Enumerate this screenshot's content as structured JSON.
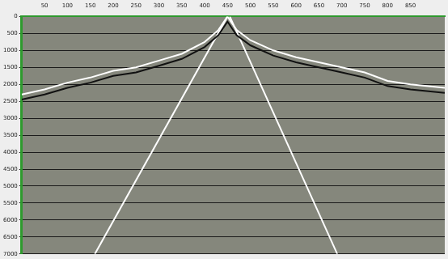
{
  "chart_data": {
    "type": "line",
    "xlim": [
      0,
      925
    ],
    "xticks": [
      50,
      100,
      150,
      200,
      250,
      300,
      350,
      400,
      450,
      500,
      550,
      600,
      650,
      700,
      750,
      800,
      850
    ],
    "ylim": [
      0,
      7000
    ],
    "yticks": [
      0,
      500,
      1000,
      1500,
      2000,
      2500,
      3000,
      3500,
      4000,
      4500,
      5000,
      5500,
      6000,
      6500,
      7000
    ],
    "grid": true,
    "tick_labels": true,
    "series": [
      {
        "color": "#ffffff",
        "x": [
          0,
          50,
          100,
          150,
          200,
          250,
          300,
          350,
          400,
          430,
          450,
          470,
          500,
          550,
          600,
          650,
          700,
          750,
          800,
          850,
          925
        ],
        "values": [
          2300,
          2150,
          1950,
          1800,
          1600,
          1500,
          1300,
          1100,
          750,
          400,
          0,
          400,
          700,
          1000,
          1200,
          1350,
          1500,
          1650,
          1900,
          2000,
          2100
        ]
      },
      {
        "color": "#111111",
        "x": [
          0,
          50,
          100,
          150,
          200,
          250,
          300,
          350,
          400,
          430,
          450,
          470,
          500,
          550,
          600,
          650,
          700,
          750,
          800,
          850,
          925
        ],
        "values": [
          2450,
          2300,
          2100,
          1950,
          1750,
          1650,
          1450,
          1250,
          900,
          550,
          150,
          550,
          850,
          1150,
          1350,
          1500,
          1650,
          1800,
          2050,
          2150,
          2250
        ]
      },
      {
        "color": "#ffffff",
        "x": [
          450,
          160
        ],
        "values": [
          0,
          7000
        ]
      },
      {
        "color": "#ffffff",
        "x": [
          455,
          690
        ],
        "values": [
          0,
          7000
        ]
      }
    ]
  }
}
